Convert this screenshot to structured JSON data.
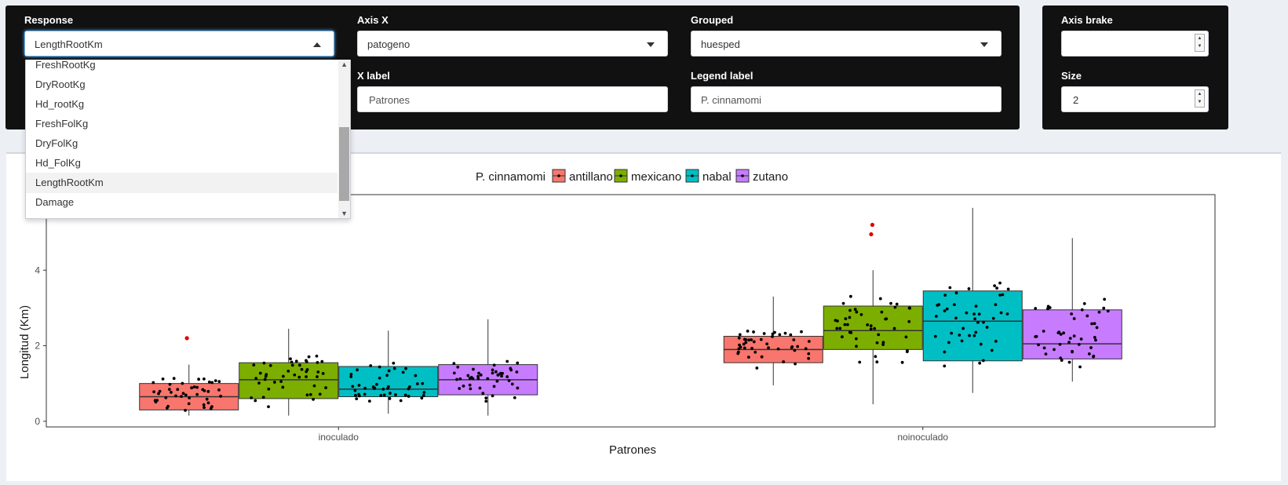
{
  "controls": {
    "response": {
      "label": "Response",
      "value": "LengthRootKm"
    },
    "axis_x": {
      "label": "Axis X",
      "value": "patogeno"
    },
    "grouped": {
      "label": "Grouped",
      "value": "huesped"
    },
    "axis_brake": {
      "label": "Axis brake",
      "value": ""
    },
    "x_label": {
      "label": "X label",
      "value": "Patrones"
    },
    "legend_label": {
      "label": "Legend label",
      "value": "P. cinnamomi"
    },
    "size": {
      "label": "Size",
      "value": "2"
    }
  },
  "dropdown": {
    "options": [
      "FreshRootKg",
      "DryRootKg",
      "Hd_rootKg",
      "FreshFolKg",
      "DryFolKg",
      "Hd_FolKg",
      "LengthRootKm",
      "Damage"
    ],
    "selected": "LengthRootKm"
  },
  "chart_data": {
    "type": "boxplot",
    "legend_title": "P. cinnamomi",
    "xlabel": "Patrones",
    "ylabel": "Longitud (Km)",
    "categories": [
      "inoculado",
      "noinoculado"
    ],
    "y_ticks": [
      0,
      2,
      4
    ],
    "ylim": [
      -0.15,
      6.0
    ],
    "legend_position": "top",
    "series": [
      {
        "name": "antillano",
        "color": "#f8766d",
        "boxes": [
          {
            "min": 0.15,
            "q1": 0.3,
            "median": 0.65,
            "q3": 1.0,
            "max": 1.5,
            "outliers": [
              2.2
            ]
          },
          {
            "min": 0.95,
            "q1": 1.55,
            "median": 1.9,
            "q3": 2.25,
            "max": 3.3,
            "outliers": []
          }
        ]
      },
      {
        "name": "mexicano",
        "color": "#7cae00",
        "boxes": [
          {
            "min": 0.15,
            "q1": 0.6,
            "median": 1.1,
            "q3": 1.55,
            "max": 2.45,
            "outliers": []
          },
          {
            "min": 0.45,
            "q1": 1.9,
            "median": 2.4,
            "q3": 3.05,
            "max": 4.0,
            "outliers": [
              5.2,
              4.95
            ]
          }
        ]
      },
      {
        "name": "nabal",
        "color": "#00bfc4",
        "boxes": [
          {
            "min": 0.2,
            "q1": 0.65,
            "median": 0.85,
            "q3": 1.45,
            "max": 2.4,
            "outliers": []
          },
          {
            "min": 0.75,
            "q1": 1.6,
            "median": 2.65,
            "q3": 3.45,
            "max": 5.65,
            "outliers": []
          }
        ]
      },
      {
        "name": "zutano",
        "color": "#c77cff",
        "boxes": [
          {
            "min": 0.15,
            "q1": 0.7,
            "median": 1.1,
            "q3": 1.5,
            "max": 2.7,
            "outliers": []
          },
          {
            "min": 1.05,
            "q1": 1.65,
            "median": 2.05,
            "q3": 2.95,
            "max": 4.85,
            "outliers": []
          }
        ]
      }
    ]
  }
}
